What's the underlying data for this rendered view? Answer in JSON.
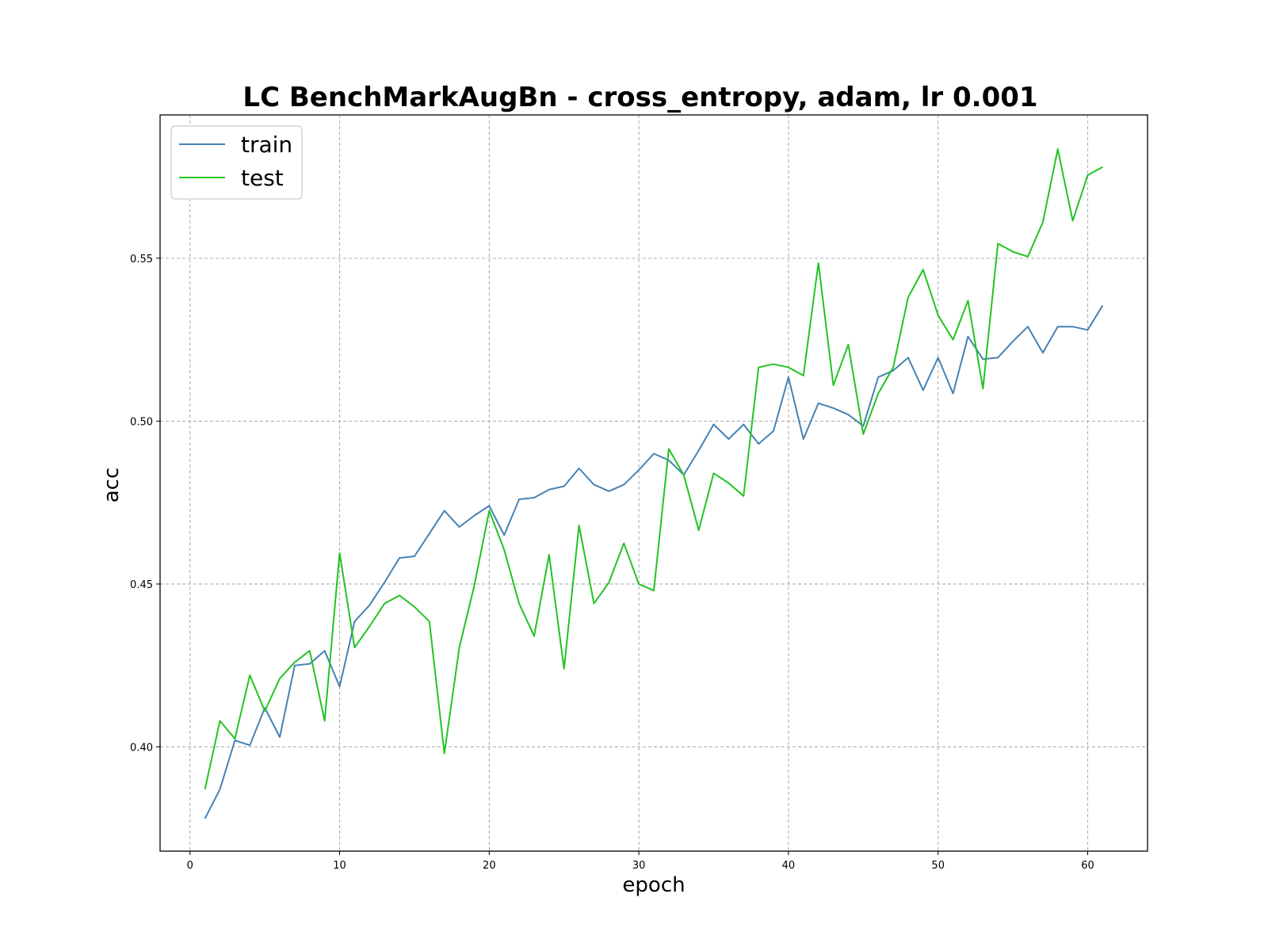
{
  "chart_data": {
    "type": "line",
    "title": "LC BenchMarkAugBn - cross_entropy, adam, lr 0.001",
    "xlabel": "epoch",
    "ylabel": "acc",
    "xlim": [
      -2,
      64
    ],
    "ylim": [
      0.368,
      0.594
    ],
    "xticks": [
      0,
      10,
      20,
      30,
      40,
      50,
      60
    ],
    "yticks": [
      0.4,
      0.45,
      0.5,
      0.55
    ],
    "xtick_labels": [
      "0",
      "10",
      "20",
      "30",
      "40",
      "50",
      "60"
    ],
    "ytick_labels": [
      "0.40",
      "0.45",
      "0.50",
      "0.55"
    ],
    "grid": true,
    "legend_position": "top-left",
    "x": [
      1,
      2,
      3,
      4,
      5,
      6,
      7,
      8,
      9,
      10,
      11,
      12,
      13,
      14,
      15,
      16,
      17,
      18,
      19,
      20,
      21,
      22,
      23,
      24,
      25,
      26,
      27,
      28,
      29,
      30,
      31,
      32,
      33,
      34,
      35,
      36,
      37,
      38,
      39,
      40,
      41,
      42,
      43,
      44,
      45,
      46,
      47,
      48,
      49,
      50,
      51,
      52,
      53,
      54,
      55,
      56,
      57,
      58,
      59,
      60,
      61
    ],
    "series": [
      {
        "name": "train",
        "color": "#4682b4",
        "values": [
          0.378,
          0.387,
          0.402,
          0.4005,
          0.412,
          0.403,
          0.425,
          0.4255,
          0.4295,
          0.4185,
          0.4385,
          0.4435,
          0.4505,
          0.458,
          0.4585,
          0.4655,
          0.4725,
          0.4675,
          0.471,
          0.474,
          0.465,
          0.476,
          0.4765,
          0.479,
          0.48,
          0.4855,
          0.4805,
          0.4785,
          0.4805,
          0.485,
          0.49,
          0.488,
          0.4835,
          0.491,
          0.499,
          0.4945,
          0.499,
          0.493,
          0.497,
          0.5135,
          0.4945,
          0.5055,
          0.504,
          0.502,
          0.4985,
          0.5135,
          0.5155,
          0.5195,
          0.5095,
          0.5195,
          0.5085,
          0.526,
          0.519,
          0.5195,
          0.5245,
          0.529,
          0.521,
          0.529,
          0.529,
          0.528,
          0.5355
        ]
      },
      {
        "name": "test",
        "color": "#22c322",
        "values": [
          0.387,
          0.408,
          0.4025,
          0.422,
          0.411,
          0.421,
          0.426,
          0.4295,
          0.408,
          0.4595,
          0.4305,
          0.437,
          0.444,
          0.4465,
          0.443,
          0.4385,
          0.398,
          0.4305,
          0.4495,
          0.4725,
          0.4605,
          0.444,
          0.434,
          0.459,
          0.424,
          0.468,
          0.444,
          0.4505,
          0.4625,
          0.45,
          0.448,
          0.4915,
          0.4835,
          0.4665,
          0.484,
          0.481,
          0.477,
          0.5165,
          0.5175,
          0.5165,
          0.514,
          0.5485,
          0.511,
          0.5235,
          0.496,
          0.5085,
          0.5165,
          0.538,
          0.5465,
          0.5325,
          0.525,
          0.537,
          0.51,
          0.5545,
          0.552,
          0.5505,
          0.561,
          0.5835,
          0.5615,
          0.5755,
          0.578
        ]
      }
    ]
  }
}
